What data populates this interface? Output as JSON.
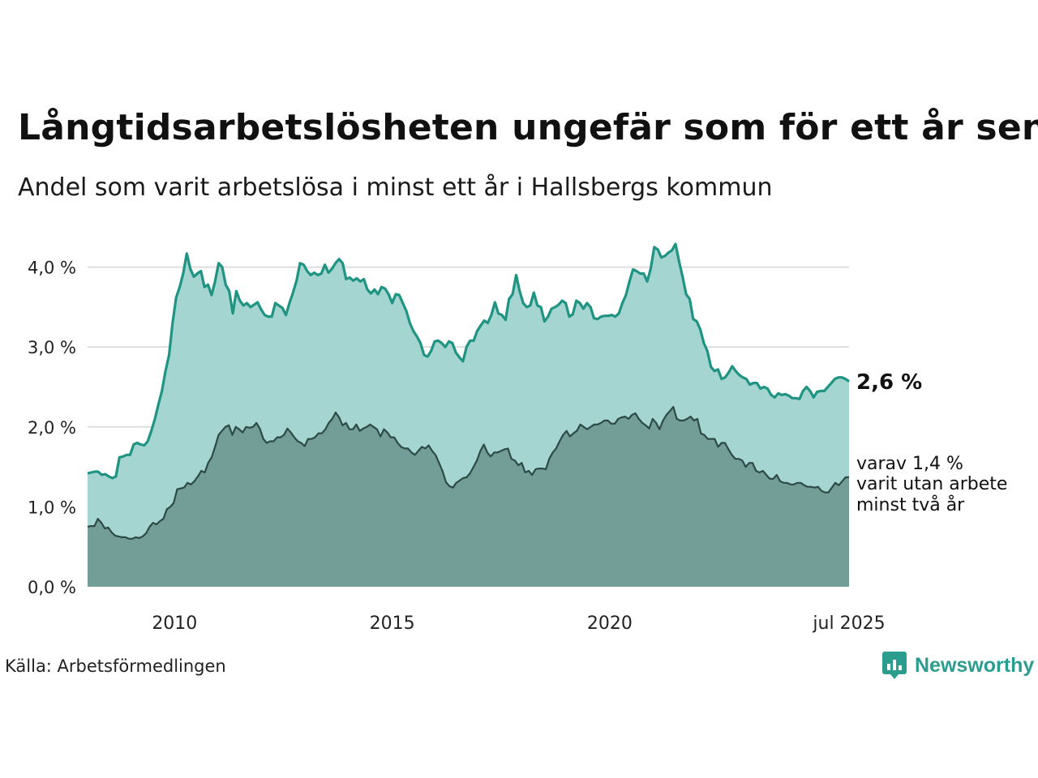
{
  "title": "Långtidsarbetslösheten ungefär som för ett år sen",
  "subtitle": "Andel som varit arbetslösa i minst ett år i Hallsbergs kommun",
  "source": "Källa: Arbetsförmedlingen",
  "brand": "Newsworthy",
  "end_label_main": "2,6 %",
  "end_label_sub": [
    "varav 1,4 %",
    "varit utan arbete",
    "minst två år"
  ],
  "colors": {
    "series1_line": "#1f9482",
    "series1_fill": "#a4d5d0",
    "series2_line": "#2e4a45",
    "series2_fill": "#729e97",
    "grid": "#dedede",
    "brand": "#2a9d8f"
  },
  "chart_data": {
    "type": "area",
    "x_start": "2008-01",
    "x_end": "2025-07",
    "x_frequency": "monthly",
    "x_ticks": [
      {
        "x": "2010-01",
        "label": "2010"
      },
      {
        "x": "2015-01",
        "label": "2015"
      },
      {
        "x": "2020-01",
        "label": "2020"
      },
      {
        "x": "2025-07",
        "label": "jul 2025"
      }
    ],
    "y_ticks": [
      {
        "value": 0,
        "label": "0,0 %"
      },
      {
        "value": 1,
        "label": "1,0 %"
      },
      {
        "value": 2,
        "label": "2,0 %"
      },
      {
        "value": 3,
        "label": "3,0 %"
      },
      {
        "value": 4,
        "label": "4,0 %"
      }
    ],
    "ylim": [
      0,
      4.3
    ],
    "grid": true,
    "series": [
      {
        "values": [
          1.42,
          1.43,
          1.44,
          1.44,
          1.4,
          1.41,
          1.38,
          1.36,
          1.38,
          1.62,
          1.63,
          1.65,
          1.65,
          1.78,
          1.8,
          1.78,
          1.77,
          1.82,
          1.95,
          2.1,
          2.28,
          2.45,
          2.7,
          2.9,
          3.3,
          3.62,
          3.75,
          3.92,
          4.17,
          3.98,
          3.88,
          3.92,
          3.95,
          3.75,
          3.78,
          3.65,
          3.82,
          4.05,
          4.0,
          3.78,
          3.7,
          3.42,
          3.7,
          3.58,
          3.52,
          3.55,
          3.5,
          3.53,
          3.56,
          3.47,
          3.4,
          3.38,
          3.38,
          3.55,
          3.52,
          3.49,
          3.4,
          3.55,
          3.68,
          3.83,
          4.05,
          4.03,
          3.95,
          3.9,
          3.93,
          3.9,
          3.92,
          4.03,
          3.93,
          3.98,
          4.05,
          4.1,
          4.05,
          3.85,
          3.87,
          3.83,
          3.86,
          3.82,
          3.85,
          3.72,
          3.67,
          3.72,
          3.66,
          3.75,
          3.73,
          3.66,
          3.55,
          3.66,
          3.65,
          3.55,
          3.45,
          3.3,
          3.2,
          3.13,
          3.05,
          2.9,
          2.88,
          2.95,
          3.07,
          3.08,
          3.05,
          3.0,
          3.07,
          3.05,
          2.93,
          2.87,
          2.82,
          3.0,
          3.08,
          3.08,
          3.2,
          3.27,
          3.33,
          3.3,
          3.4,
          3.56,
          3.42,
          3.4,
          3.34,
          3.6,
          3.66,
          3.9,
          3.7,
          3.55,
          3.5,
          3.52,
          3.68,
          3.52,
          3.5,
          3.32,
          3.38,
          3.48,
          3.5,
          3.53,
          3.58,
          3.55,
          3.38,
          3.41,
          3.58,
          3.55,
          3.48,
          3.55,
          3.5,
          3.36,
          3.35,
          3.38,
          3.39,
          3.39,
          3.4,
          3.38,
          3.42,
          3.55,
          3.65,
          3.82,
          3.97,
          3.95,
          3.92,
          3.92,
          3.82,
          3.98,
          4.25,
          4.22,
          4.12,
          4.14,
          4.18,
          4.21,
          4.29,
          4.07,
          3.88,
          3.66,
          3.6,
          3.35,
          3.32,
          3.22,
          3.05,
          2.95,
          2.75,
          2.7,
          2.72,
          2.6,
          2.62,
          2.68,
          2.76,
          2.7,
          2.65,
          2.62,
          2.6,
          2.53,
          2.55,
          2.55,
          2.48,
          2.5,
          2.48,
          2.4,
          2.37,
          2.42,
          2.4,
          2.41,
          2.39,
          2.36,
          2.36,
          2.35,
          2.45,
          2.5,
          2.45,
          2.37,
          2.44,
          2.45,
          2.45,
          2.5,
          2.55,
          2.6,
          2.62,
          2.62,
          2.6,
          2.57
        ]
      },
      {
        "values": [
          0.75,
          0.76,
          0.76,
          0.85,
          0.8,
          0.73,
          0.74,
          0.68,
          0.64,
          0.63,
          0.62,
          0.62,
          0.6,
          0.6,
          0.62,
          0.61,
          0.63,
          0.67,
          0.75,
          0.8,
          0.78,
          0.82,
          0.85,
          0.97,
          1.0,
          1.05,
          1.22,
          1.23,
          1.24,
          1.3,
          1.28,
          1.32,
          1.38,
          1.45,
          1.43,
          1.55,
          1.62,
          1.75,
          1.9,
          1.95,
          2.0,
          2.02,
          1.9,
          2.0,
          1.97,
          1.93,
          2.0,
          1.99,
          2.0,
          2.05,
          1.98,
          1.85,
          1.8,
          1.82,
          1.82,
          1.87,
          1.87,
          1.9,
          1.98,
          1.93,
          1.87,
          1.82,
          1.8,
          1.76,
          1.85,
          1.85,
          1.87,
          1.92,
          1.92,
          1.97,
          2.05,
          2.1,
          2.18,
          2.12,
          2.02,
          2.05,
          1.97,
          1.97,
          2.03,
          1.95,
          1.98,
          2.0,
          2.03,
          2.0,
          1.97,
          1.88,
          1.97,
          1.93,
          1.87,
          1.87,
          1.8,
          1.75,
          1.73,
          1.73,
          1.68,
          1.65,
          1.7,
          1.75,
          1.73,
          1.77,
          1.7,
          1.65,
          1.55,
          1.45,
          1.31,
          1.26,
          1.24,
          1.3,
          1.33,
          1.36,
          1.37,
          1.42,
          1.5,
          1.58,
          1.7,
          1.78,
          1.68,
          1.63,
          1.68,
          1.68,
          1.7,
          1.72,
          1.73,
          1.6,
          1.58,
          1.52,
          1.55,
          1.43,
          1.45,
          1.4,
          1.47,
          1.48,
          1.48,
          1.47,
          1.6,
          1.68,
          1.73,
          1.82,
          1.9,
          1.95,
          1.88,
          1.92,
          1.95,
          2.03,
          2.0,
          1.97,
          2.0,
          2.03,
          2.03,
          2.05,
          2.08,
          2.08,
          2.04,
          2.04,
          2.1,
          2.12,
          2.13,
          2.1,
          2.15,
          2.17,
          2.1,
          2.05,
          2.02,
          1.98,
          2.1,
          2.05,
          1.97,
          2.08,
          2.15,
          2.2,
          2.25,
          2.1,
          2.08,
          2.08,
          2.1,
          2.13,
          2.08,
          2.1,
          1.92,
          1.9,
          1.85,
          1.85,
          1.85,
          1.75,
          1.8,
          1.8,
          1.72,
          1.65,
          1.6,
          1.6,
          1.58,
          1.5,
          1.55,
          1.55,
          1.45,
          1.43,
          1.45,
          1.4,
          1.35,
          1.35,
          1.4,
          1.32,
          1.3,
          1.3,
          1.28,
          1.28,
          1.3,
          1.3,
          1.27,
          1.25,
          1.25,
          1.24,
          1.25,
          1.2,
          1.18,
          1.18,
          1.24,
          1.3,
          1.27,
          1.32,
          1.37,
          1.37
        ]
      }
    ]
  }
}
